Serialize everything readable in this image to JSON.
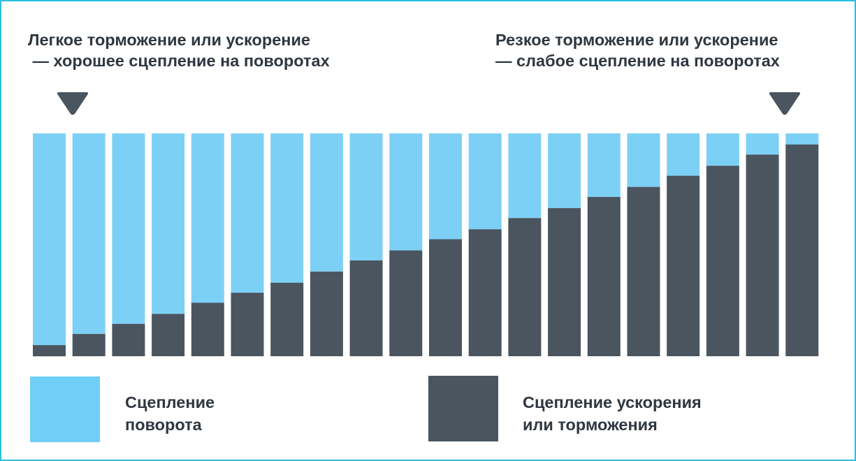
{
  "annotations": {
    "left_line1": "Легкое торможение или ускорение",
    "left_line2": " — хорошее сцепление на поворотах",
    "right_line1": "Резкое торможение или ускорение",
    "right_line2": "— слабое сцепление на поворотах"
  },
  "legend": {
    "cornering_line1": "Сцепление",
    "cornering_line2": "поворота",
    "braking_line1": "Сцепление ускорения",
    "braking_line2": "или торможения"
  },
  "colors": {
    "cornering": "#7dd0f5",
    "cornering_legend": "#6fcff6",
    "braking": "#4a5560",
    "marker": "#4a5560",
    "frame": "#2bbde0"
  },
  "chart_data": {
    "type": "bar",
    "stacked": true,
    "normalized": true,
    "categories": [
      "",
      "",
      "",
      "",
      "",
      "",
      "",
      "",
      "",
      "",
      "",
      "",
      "",
      "",
      "",
      "",
      "",
      "",
      "",
      ""
    ],
    "series": [
      {
        "name": "Сцепление ускорения или торможения",
        "color": "#4a5560",
        "values": [
          5,
          10,
          14.5,
          19,
          24,
          28.5,
          33,
          38,
          43,
          47.5,
          52.5,
          57,
          62,
          66.5,
          71.5,
          76,
          81,
          85.5,
          90.5,
          95
        ]
      },
      {
        "name": "Сцепление поворота",
        "color": "#7dd0f5",
        "values": [
          95,
          90,
          85.5,
          81,
          76,
          71.5,
          67,
          62,
          57,
          52.5,
          47.5,
          43,
          38,
          33.5,
          28.5,
          24,
          19,
          14.5,
          9.5,
          5
        ]
      }
    ],
    "ylim": [
      0,
      100
    ],
    "grid": false,
    "legend_position": "bottom"
  }
}
